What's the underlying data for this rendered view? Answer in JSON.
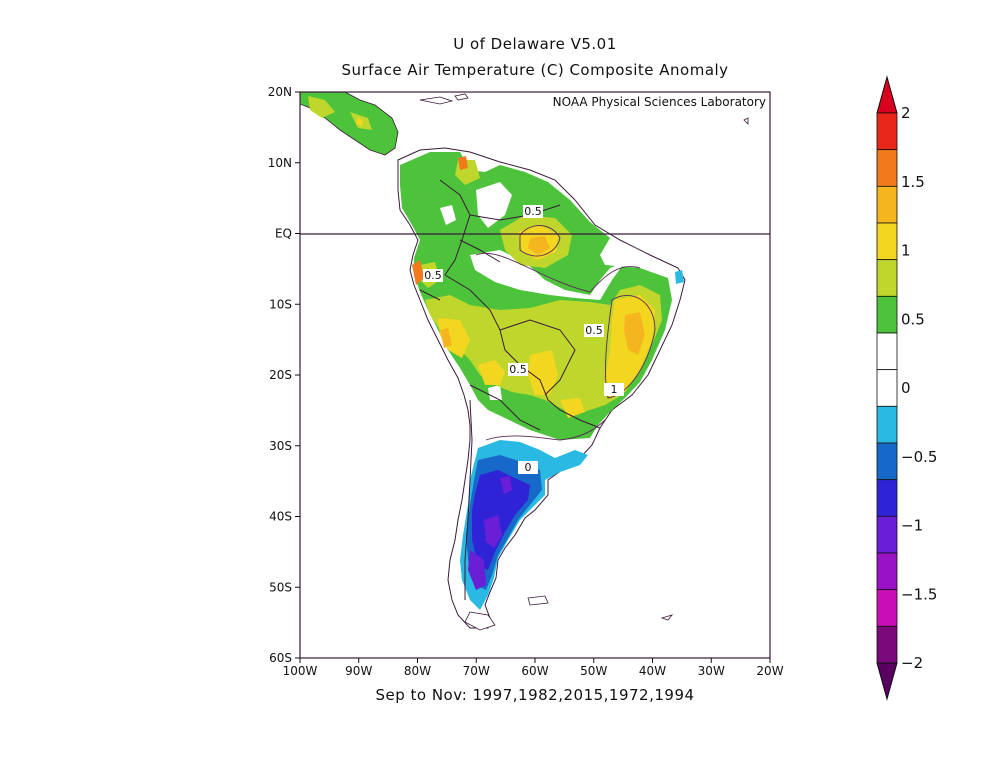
{
  "title_line1": "U of Delaware V5.01",
  "title_line2": "Surface Air Temperature (C) Composite Anomaly",
  "credit": "NOAA Physical Sciences Laboratory",
  "subtitle": "Sep to Nov: 1997,1982,2015,1972,1994",
  "lat_labels": [
    "20N",
    "10N",
    "EQ",
    "10S",
    "20S",
    "30S",
    "40S",
    "50S",
    "60S"
  ],
  "lon_labels": [
    "100W",
    "90W",
    "80W",
    "70W",
    "60W",
    "50W",
    "40W",
    "30W",
    "20W"
  ],
  "contour_labels": [
    "0.5",
    "0.5",
    "0.5",
    "0.5",
    "1",
    "0"
  ],
  "colorbar": {
    "labels": [
      "2",
      "1.5",
      "1",
      "0.5",
      "0",
      "−0.5",
      "−1",
      "−1.5",
      "−2"
    ],
    "bins": [
      {
        "range": "1.75 to 2",
        "color": "#e8261a"
      },
      {
        "range": "1.5 to 1.75",
        "color": "#f07a1c"
      },
      {
        "range": "1.25 to 1.5",
        "color": "#f5b51f"
      },
      {
        "range": "1 to 1.25",
        "color": "#f3d620"
      },
      {
        "range": "0.75 to 1",
        "color": "#bfd62c"
      },
      {
        "range": "0.25 to 0.75",
        "color": "#4cc33a"
      },
      {
        "range": "0 to 0.25",
        "color": "#ffffff"
      },
      {
        "range": "-0.25 to 0",
        "color": "#ffffff"
      },
      {
        "range": "-0.5 to -0.25",
        "color": "#29b9e3"
      },
      {
        "range": "-0.75 to -0.5",
        "color": "#1769c9"
      },
      {
        "range": "-1 to -0.75",
        "color": "#2f23d6"
      },
      {
        "range": "-1.25 to -1",
        "color": "#6a1ed6"
      },
      {
        "range": "-1.5 to -1.25",
        "color": "#9a12c6"
      },
      {
        "range": "-1.75 to -1.5",
        "color": "#c80fb6"
      },
      {
        "range": "-2 to -1.75",
        "color": "#7a0a7a"
      }
    ],
    "over_color": "#d8001e",
    "under_color": "#5a0060"
  },
  "map": {
    "lon_range": [
      -100,
      -20
    ],
    "lat_range": [
      -60,
      20
    ],
    "equator_line": true
  }
}
